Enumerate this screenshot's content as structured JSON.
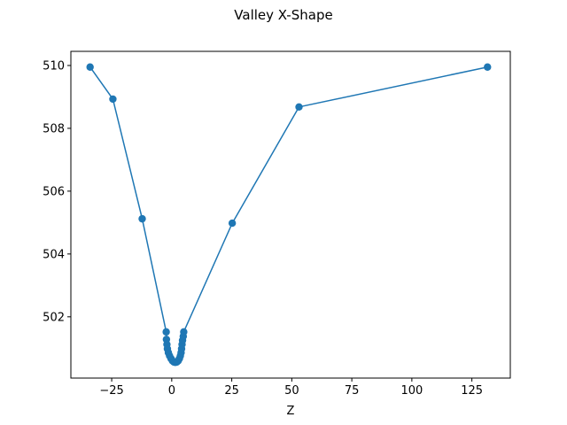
{
  "chart_data": {
    "type": "line",
    "title": "Valley X-Shape",
    "xlabel": "Z",
    "ylabel": "",
    "xlim": [
      -42,
      141
    ],
    "ylim": [
      500.05,
      510.45
    ],
    "xticks": [
      -25,
      0,
      25,
      50,
      75,
      100,
      125
    ],
    "xtick_labels": [
      "−25",
      "0",
      "25",
      "50",
      "75",
      "100",
      "125"
    ],
    "yticks": [
      502,
      504,
      506,
      508,
      510
    ],
    "ytick_labels": [
      "502",
      "504",
      "506",
      "508",
      "510"
    ],
    "grid": false,
    "line_color": "#1f77b4",
    "series": [
      {
        "marker": "circle",
        "x": [
          -34,
          -24.5,
          -12.3,
          -2.3,
          -2.2,
          -2.0,
          -1.8,
          -1.4,
          -0.9,
          -0.3,
          0.3,
          0.9,
          1.5,
          2.1,
          2.7,
          3.2,
          3.6,
          3.9,
          4.1,
          4.3,
          4.5,
          4.8,
          5.0,
          25.2,
          53.0,
          131.5
        ],
        "y": [
          509.95,
          508.93,
          505.12,
          501.52,
          501.28,
          501.12,
          500.98,
          500.86,
          500.76,
          500.67,
          500.6,
          500.56,
          500.55,
          500.56,
          500.6,
          500.67,
          500.76,
          500.86,
          500.98,
          501.12,
          501.25,
          501.38,
          501.52,
          504.98,
          508.68,
          509.95
        ]
      }
    ]
  }
}
